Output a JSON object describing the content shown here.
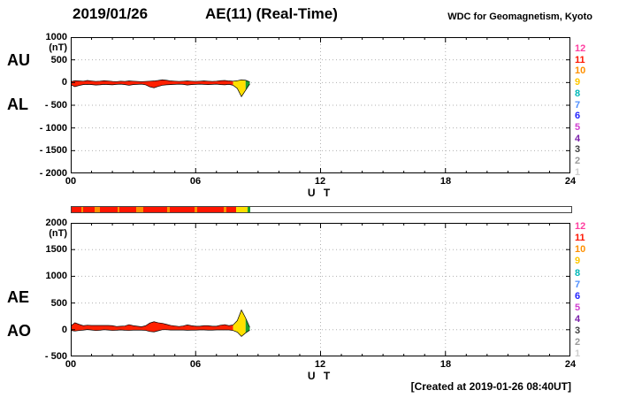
{
  "header": {
    "date": "2019/01/26",
    "title": "AE(11) (Real-Time)",
    "source": "WDC for Geomagnetism, Kyoto"
  },
  "footer": {
    "created": "[Created at 2019-01-26 08:40UT]"
  },
  "panels": {
    "top": {
      "label_upper": "AU",
      "label_lower": "AL"
    },
    "bottom": {
      "label_upper": "AE",
      "label_lower": "AO"
    }
  },
  "axes": {
    "unit": "(nT)",
    "x_label": "U T",
    "x_ticks": [
      "00",
      "06",
      "12",
      "18",
      "24"
    ],
    "top_y_ticks": [
      "1000",
      "500",
      "0",
      "- 500",
      "- 1000",
      "- 1500",
      "- 2000"
    ],
    "bottom_y_ticks": [
      "2000",
      "1500",
      "1000",
      "500",
      "0",
      "- 500"
    ]
  },
  "legend": {
    "meaning": "number of available stations",
    "entries": [
      {
        "label": "12",
        "color": "#ff3fa0"
      },
      {
        "label": "11",
        "color": "#ff1500"
      },
      {
        "label": "10",
        "color": "#ff9000"
      },
      {
        "label": "9",
        "color": "#ffc800"
      },
      {
        "label": "8",
        "color": "#00b8b8"
      },
      {
        "label": "7",
        "color": "#4f8fff"
      },
      {
        "label": "6",
        "color": "#2222ff"
      },
      {
        "label": "5",
        "color": "#d03fd0"
      },
      {
        "label": "4",
        "color": "#7a1fa8"
      },
      {
        "label": "3",
        "color": "#404040"
      },
      {
        "label": "2",
        "color": "#9a9a9a"
      },
      {
        "label": "1",
        "color": "#cfcfcf"
      }
    ]
  },
  "availability_bar": {
    "segments": [
      {
        "from": 0.0,
        "to": 0.45,
        "color": "#ff1500"
      },
      {
        "from": 0.45,
        "to": 0.55,
        "color": "#ff9000"
      },
      {
        "from": 0.55,
        "to": 1.1,
        "color": "#ff1500"
      },
      {
        "from": 1.1,
        "to": 1.35,
        "color": "#ff9000"
      },
      {
        "from": 1.35,
        "to": 2.2,
        "color": "#ff1500"
      },
      {
        "from": 2.2,
        "to": 2.3,
        "color": "#ff9000"
      },
      {
        "from": 2.3,
        "to": 3.1,
        "color": "#ff1500"
      },
      {
        "from": 3.1,
        "to": 3.45,
        "color": "#ff9000"
      },
      {
        "from": 3.45,
        "to": 4.6,
        "color": "#ff1500"
      },
      {
        "from": 4.6,
        "to": 4.7,
        "color": "#ff9000"
      },
      {
        "from": 4.7,
        "to": 5.9,
        "color": "#ff1500"
      },
      {
        "from": 5.9,
        "to": 6.05,
        "color": "#ff9000"
      },
      {
        "from": 6.05,
        "to": 7.3,
        "color": "#ff1500"
      },
      {
        "from": 7.3,
        "to": 7.45,
        "color": "#ff9000"
      },
      {
        "from": 7.45,
        "to": 7.9,
        "color": "#ff1500"
      },
      {
        "from": 7.9,
        "to": 8.45,
        "color": "#ffe000"
      },
      {
        "from": 8.45,
        "to": 8.6,
        "color": "#1a9e30"
      }
    ]
  },
  "chart_data": [
    {
      "type": "area",
      "title": "AU / AL auroral electrojet indices (Real-Time)",
      "xlabel": "U T",
      "ylabel": "(nT)",
      "xlim": [
        0,
        24
      ],
      "ylim": [
        -2000,
        1000
      ],
      "xticks": [
        0,
        6,
        12,
        18,
        24
      ],
      "yticks": [
        1000,
        500,
        0,
        -500,
        -1000,
        -1500,
        -2000
      ],
      "x": [
        0,
        0.2,
        0.4,
        0.6,
        0.8,
        1,
        1.2,
        1.4,
        1.6,
        1.8,
        2,
        2.2,
        2.4,
        2.6,
        2.8,
        3,
        3.2,
        3.4,
        3.6,
        3.8,
        4,
        4.2,
        4.4,
        4.6,
        4.8,
        5,
        5.2,
        5.4,
        5.6,
        5.8,
        6,
        6.2,
        6.4,
        6.6,
        6.8,
        7,
        7.2,
        7.4,
        7.6,
        7.8,
        8,
        8.2,
        8.4,
        8.6
      ],
      "series": [
        {
          "name": "AU",
          "values": [
            20,
            40,
            35,
            30,
            45,
            35,
            25,
            30,
            40,
            35,
            25,
            20,
            30,
            25,
            35,
            30,
            25,
            20,
            25,
            30,
            35,
            45,
            60,
            50,
            35,
            30,
            25,
            30,
            35,
            30,
            25,
            30,
            35,
            30,
            25,
            30,
            40,
            45,
            35,
            30,
            40,
            60,
            50,
            15
          ]
        },
        {
          "name": "AL",
          "values": [
            -50,
            -90,
            -65,
            -45,
            -40,
            -45,
            -55,
            -50,
            -40,
            -45,
            -50,
            -40,
            -35,
            -45,
            -60,
            -45,
            -40,
            -35,
            -50,
            -95,
            -115,
            -85,
            -60,
            -50,
            -45,
            -40,
            -35,
            -40,
            -55,
            -45,
            -40,
            -35,
            -40,
            -45,
            -40,
            -35,
            -45,
            -50,
            -40,
            -60,
            -130,
            -310,
            -170,
            -30
          ]
        }
      ],
      "fill_segments": [
        {
          "from": 0,
          "to": 7.8,
          "color": "#ff2000"
        },
        {
          "from": 7.8,
          "to": 8.4,
          "color": "#ffe000"
        },
        {
          "from": 8.4,
          "to": 8.6,
          "color": "#1a9e30"
        }
      ]
    },
    {
      "type": "area",
      "title": "AE / AO auroral electrojet indices (Real-Time)",
      "xlabel": "U T",
      "ylabel": "(nT)",
      "xlim": [
        0,
        24
      ],
      "ylim": [
        -500,
        2000
      ],
      "xticks": [
        0,
        6,
        12,
        18,
        24
      ],
      "yticks": [
        2000,
        1500,
        1000,
        500,
        0,
        -500
      ],
      "x": [
        0,
        0.2,
        0.4,
        0.6,
        0.8,
        1,
        1.2,
        1.4,
        1.6,
        1.8,
        2,
        2.2,
        2.4,
        2.6,
        2.8,
        3,
        3.2,
        3.4,
        3.6,
        3.8,
        4,
        4.2,
        4.4,
        4.6,
        4.8,
        5,
        5.2,
        5.4,
        5.6,
        5.8,
        6,
        6.2,
        6.4,
        6.6,
        6.8,
        7,
        7.2,
        7.4,
        7.6,
        7.8,
        8,
        8.2,
        8.4,
        8.6
      ],
      "series": [
        {
          "name": "AE",
          "values": [
            70,
            130,
            100,
            75,
            85,
            80,
            80,
            80,
            80,
            80,
            75,
            60,
            65,
            70,
            95,
            75,
            65,
            55,
            75,
            125,
            150,
            130,
            120,
            100,
            80,
            70,
            60,
            70,
            90,
            75,
            65,
            65,
            75,
            75,
            65,
            65,
            85,
            95,
            75,
            90,
            170,
            370,
            220,
            45
          ]
        },
        {
          "name": "AO",
          "values": [
            -15,
            -25,
            -15,
            -8,
            3,
            -5,
            -15,
            -10,
            0,
            -5,
            -13,
            -10,
            -3,
            -10,
            -13,
            -8,
            -8,
            -8,
            -13,
            -33,
            -40,
            -20,
            0,
            0,
            -5,
            -5,
            -5,
            -5,
            -10,
            -8,
            -8,
            -3,
            -3,
            -8,
            -8,
            -3,
            -3,
            -3,
            -3,
            -15,
            -45,
            -125,
            -60,
            -8
          ]
        }
      ],
      "fill_segments": [
        {
          "from": 0,
          "to": 7.8,
          "color": "#ff2000"
        },
        {
          "from": 7.8,
          "to": 8.4,
          "color": "#ffe000"
        },
        {
          "from": 8.4,
          "to": 8.6,
          "color": "#1a9e30"
        }
      ]
    }
  ]
}
